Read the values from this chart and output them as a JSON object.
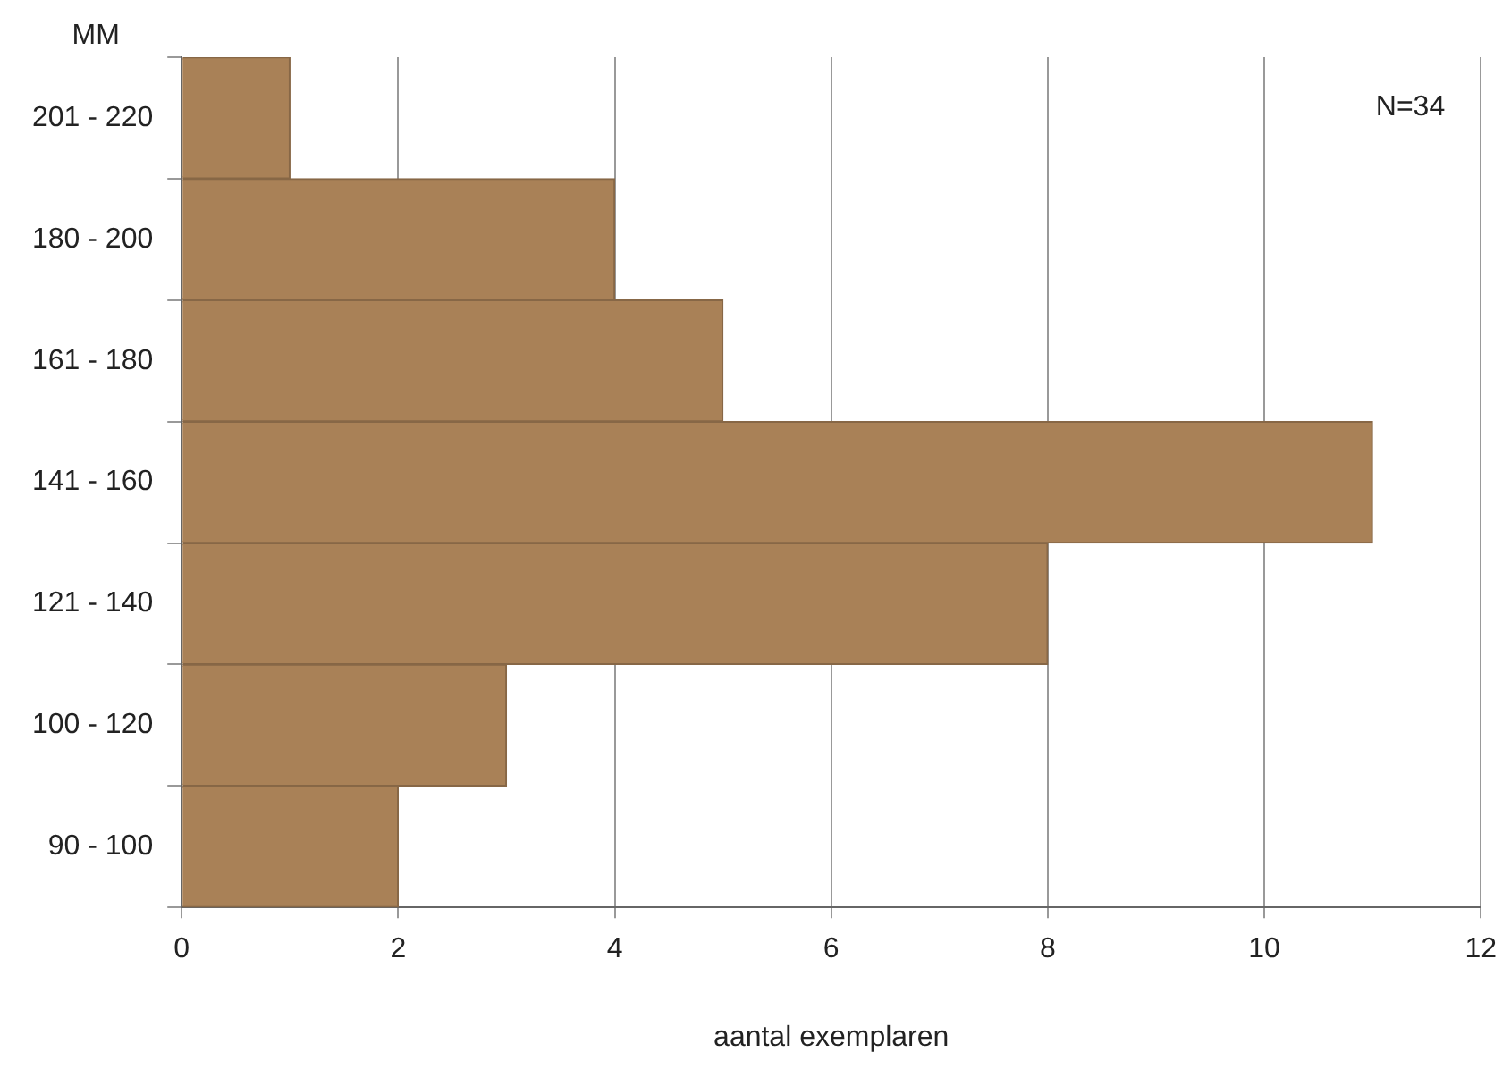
{
  "chart_data": {
    "type": "bar",
    "orientation": "horizontal",
    "ylabel": "MM",
    "xlabel": "aantal exemplaren",
    "categories": [
      "201 - 220",
      "180 - 200",
      "161 - 180",
      "141 - 160",
      "121 - 140",
      "100 - 120",
      "90 - 100"
    ],
    "values": [
      1,
      4,
      5,
      11,
      8,
      3,
      2
    ],
    "color": "#a98157",
    "xlim": [
      0,
      12
    ],
    "xticks": [
      0,
      2,
      4,
      6,
      8,
      10,
      12
    ],
    "grid": "x",
    "annotations": [
      "N=34"
    ]
  }
}
